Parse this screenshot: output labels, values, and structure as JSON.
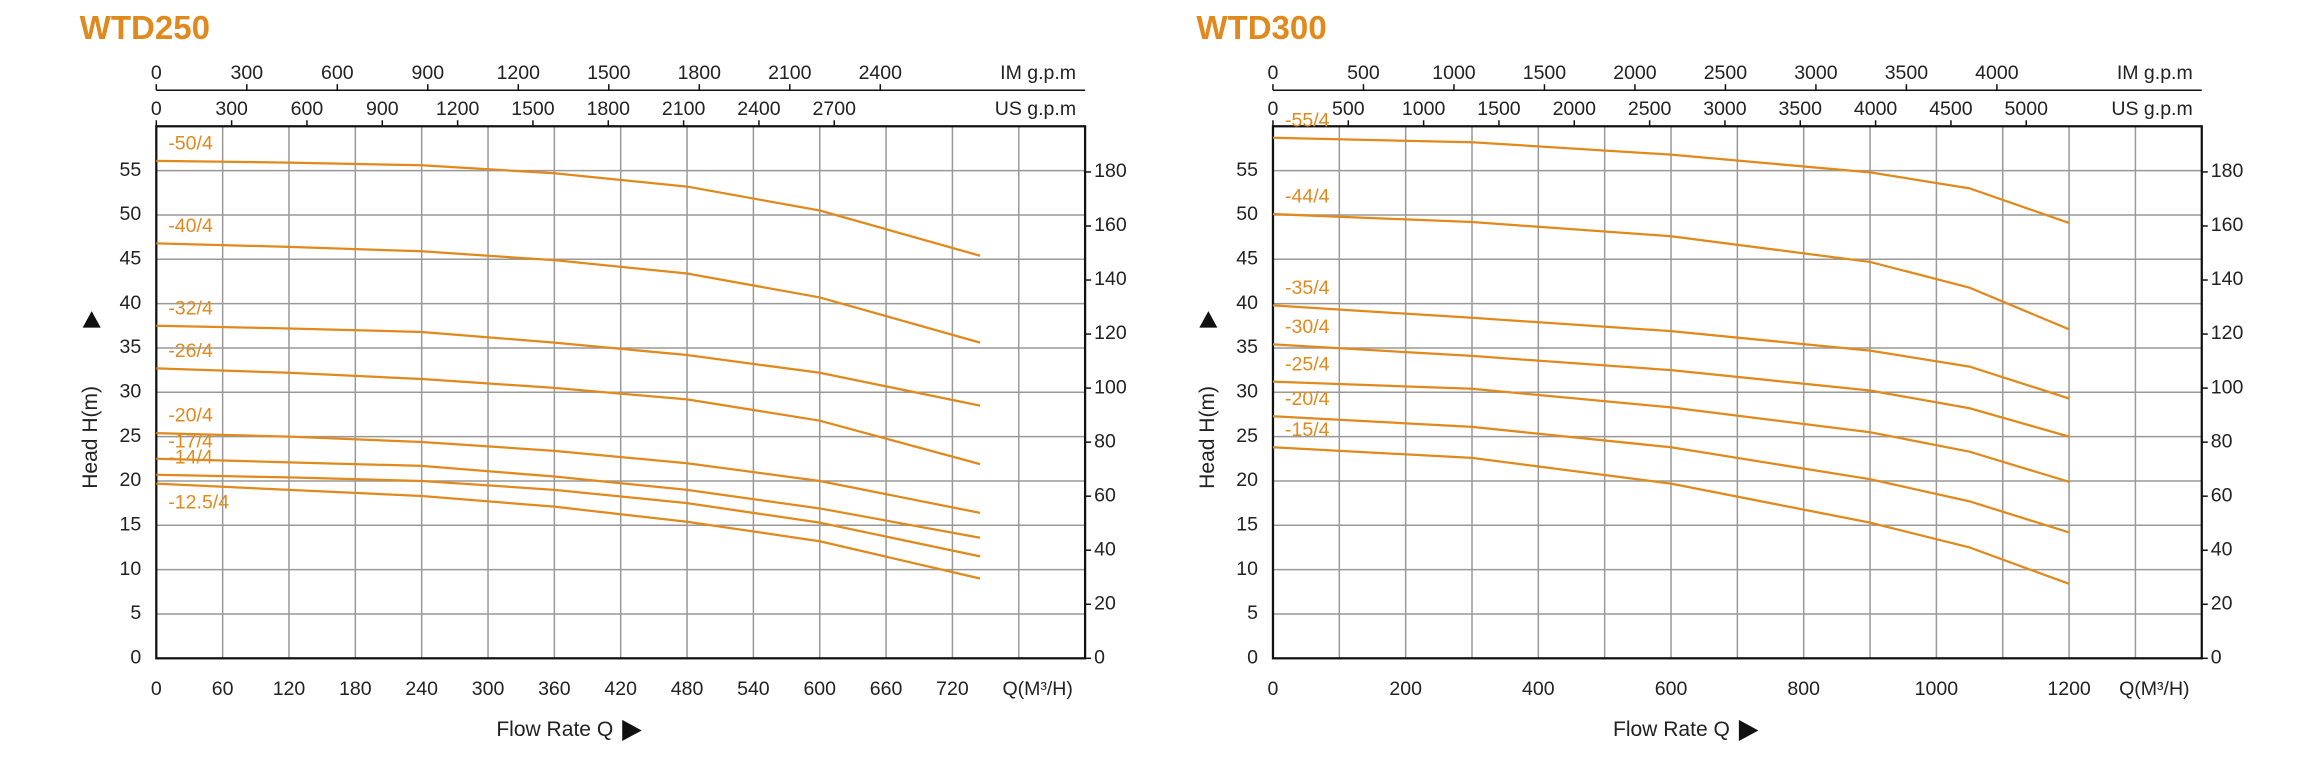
{
  "chart_data": [
    {
      "type": "line",
      "title": "WTD250",
      "xlabel": "Flow Rate Q",
      "xunit_label": "Q(M³/H)",
      "ylabel": "Head H(m)",
      "xlim": [
        0,
        840
      ],
      "xticks": [
        0,
        60,
        120,
        180,
        240,
        300,
        360,
        420,
        480,
        540,
        600,
        660,
        720
      ],
      "xgrid_extra": [
        780
      ],
      "ylim": [
        0,
        60
      ],
      "yticks": [
        0,
        5,
        10,
        15,
        20,
        25,
        30,
        35,
        40,
        45,
        50,
        55
      ],
      "y2lim": [
        0,
        196.9
      ],
      "y2ticks": [
        0,
        20,
        40,
        60,
        80,
        100,
        120,
        140,
        160,
        180
      ],
      "grid": true,
      "top_axes": [
        {
          "label": "IM g.p.m",
          "xlim": [
            0,
            3079
          ],
          "xticks": [
            0,
            300,
            600,
            900,
            1200,
            1500,
            1800,
            2100,
            2400
          ]
        },
        {
          "label": "US g.p.m",
          "xlim": [
            0,
            3699
          ],
          "xticks": [
            0,
            300,
            600,
            900,
            1200,
            1500,
            1800,
            2100,
            2400,
            2700
          ]
        }
      ],
      "x": [
        0,
        120,
        240,
        360,
        480,
        600,
        745
      ],
      "series": [
        {
          "name": "-50/4",
          "color": "#e08a1e",
          "values": [
            56.1,
            55.9,
            55.6,
            54.7,
            53.2,
            50.5,
            45.4
          ]
        },
        {
          "name": "-40/4",
          "color": "#e08a1e",
          "values": [
            46.8,
            46.4,
            45.9,
            44.9,
            43.4,
            40.7,
            35.6
          ]
        },
        {
          "name": "-32/4",
          "color": "#e08a1e",
          "values": [
            37.5,
            37.2,
            36.8,
            35.6,
            34.2,
            32.2,
            28.5
          ]
        },
        {
          "name": "-26/4",
          "color": "#e08a1e",
          "values": [
            32.7,
            32.2,
            31.5,
            30.5,
            29.2,
            26.8,
            21.9
          ]
        },
        {
          "name": "-20/4",
          "color": "#e08a1e",
          "values": [
            25.4,
            25.0,
            24.4,
            23.4,
            22.0,
            20.0,
            16.4
          ]
        },
        {
          "name": "-17/4",
          "color": "#e08a1e",
          "values": [
            22.5,
            22.1,
            21.7,
            20.5,
            19.0,
            16.9,
            13.6
          ]
        },
        {
          "name": "-14/4",
          "color": "#e08a1e",
          "values": [
            20.7,
            20.4,
            20.0,
            19.0,
            17.5,
            15.3,
            11.5
          ]
        },
        {
          "name": "-12.5/4",
          "color": "#e08a1e",
          "values": [
            19.7,
            19.0,
            18.3,
            17.1,
            15.4,
            13.2,
            9.0
          ]
        }
      ]
    },
    {
      "type": "line",
      "title": "WTD300",
      "xlabel": "Flow Rate Q",
      "xunit_label": "Q(M³/H)",
      "ylabel": "Head H(m)",
      "xlim": [
        0,
        1400
      ],
      "xticks": [
        0,
        200,
        400,
        600,
        800,
        1000,
        1200
      ],
      "xgrid_extra": [
        100,
        300,
        500,
        700,
        900,
        1100,
        1300
      ],
      "ylim": [
        0,
        60
      ],
      "yticks": [
        0,
        5,
        10,
        15,
        20,
        25,
        30,
        35,
        40,
        45,
        50,
        55
      ],
      "y2lim": [
        0,
        196.9
      ],
      "y2ticks": [
        0,
        20,
        40,
        60,
        80,
        100,
        120,
        140,
        160,
        180
      ],
      "grid": true,
      "top_axes": [
        {
          "label": "IM g.p.m",
          "xlim": [
            0,
            5132
          ],
          "xticks": [
            0,
            500,
            1000,
            1500,
            2000,
            2500,
            3000,
            3500,
            4000
          ]
        },
        {
          "label": "US g.p.m",
          "xlim": [
            0,
            6165
          ],
          "xticks": [
            0,
            500,
            1000,
            1500,
            2000,
            2500,
            3000,
            3500,
            4000,
            4500,
            5000
          ]
        }
      ],
      "x": [
        0,
        300,
        600,
        900,
        1050,
        1200
      ],
      "series": [
        {
          "name": "-55/4",
          "color": "#e08a1e",
          "values": [
            58.7,
            58.2,
            56.8,
            54.8,
            53.0,
            49.1
          ]
        },
        {
          "name": "-44/4",
          "color": "#e08a1e",
          "values": [
            50.1,
            49.2,
            47.6,
            44.7,
            41.8,
            37.1
          ]
        },
        {
          "name": "-35/4",
          "color": "#e08a1e",
          "values": [
            39.8,
            38.4,
            36.9,
            34.7,
            32.9,
            29.3
          ]
        },
        {
          "name": "-30/4",
          "color": "#e08a1e",
          "values": [
            35.4,
            34.1,
            32.5,
            30.2,
            28.2,
            25.0
          ]
        },
        {
          "name": "-25/4",
          "color": "#e08a1e",
          "values": [
            31.2,
            30.4,
            28.3,
            25.5,
            23.3,
            19.9
          ]
        },
        {
          "name": "-20/4",
          "color": "#e08a1e",
          "values": [
            27.3,
            26.1,
            23.8,
            20.2,
            17.7,
            14.2
          ]
        },
        {
          "name": "-15/4",
          "color": "#e08a1e",
          "values": [
            23.8,
            22.6,
            19.7,
            15.3,
            12.5,
            8.4
          ]
        }
      ]
    }
  ]
}
